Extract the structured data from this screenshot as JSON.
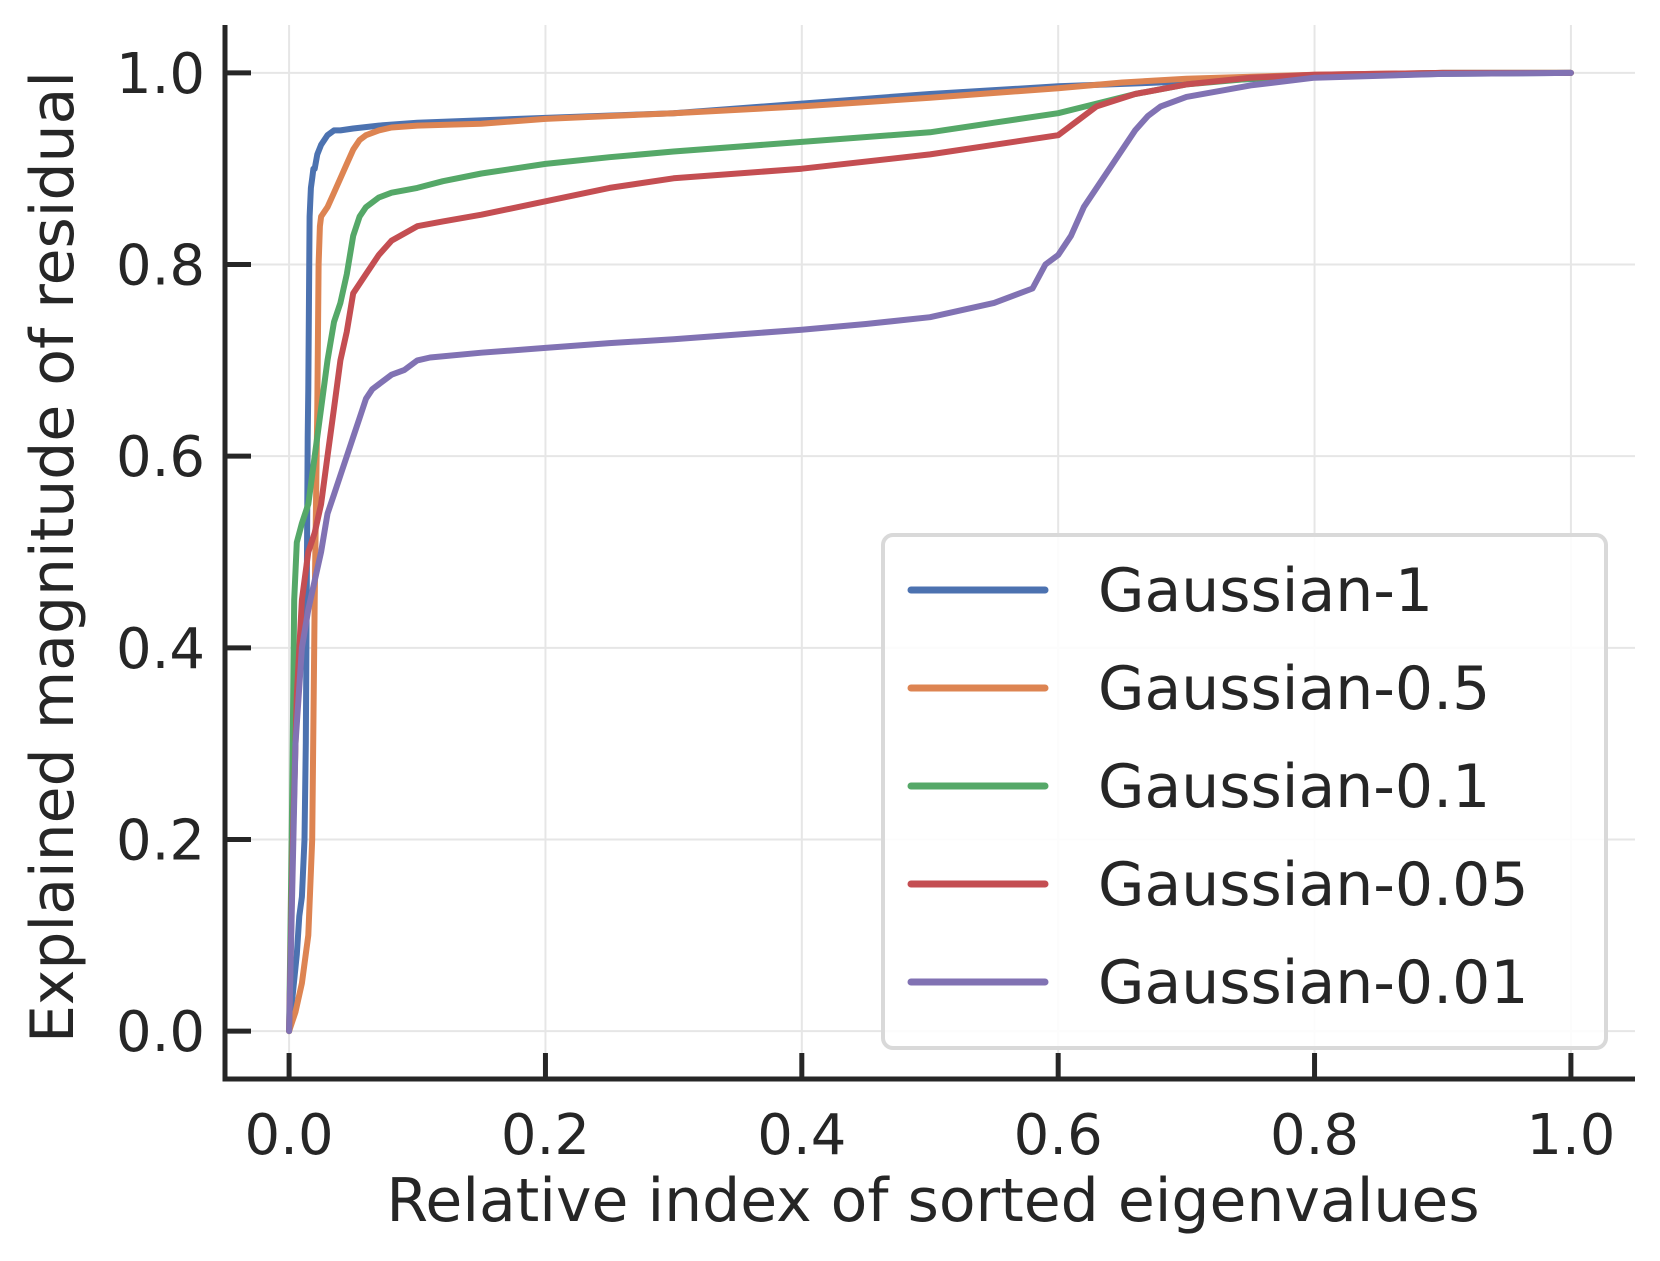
{
  "chart_data": {
    "type": "line",
    "title": "",
    "xlabel": "Relative index of sorted eigenvalues",
    "ylabel": "Explained magnitude of residual",
    "xlim": [
      -0.05,
      1.05
    ],
    "ylim": [
      -0.05,
      1.05
    ],
    "xticks": [
      0.0,
      0.2,
      0.4,
      0.6,
      0.8,
      1.0
    ],
    "yticks": [
      0.0,
      0.2,
      0.4,
      0.6,
      0.8,
      1.0
    ],
    "xtick_labels": [
      "0.0",
      "0.2",
      "0.4",
      "0.6",
      "0.8",
      "1.0"
    ],
    "ytick_labels": [
      "0.0",
      "0.2",
      "0.4",
      "0.6",
      "0.8",
      "1.0"
    ],
    "grid": true,
    "legend_position": "bottom-right",
    "series": [
      {
        "name": "Gaussian-1",
        "color": "#4c72b0",
        "x": [
          0.0,
          0.003,
          0.006,
          0.008,
          0.01,
          0.012,
          0.013,
          0.014,
          0.0145,
          0.015,
          0.016,
          0.017,
          0.018,
          0.019,
          0.02,
          0.022,
          0.025,
          0.03,
          0.035,
          0.04,
          0.05,
          0.07,
          0.1,
          0.2,
          0.3,
          0.4,
          0.5,
          0.6,
          0.7,
          0.8,
          0.9,
          1.0
        ],
        "y": [
          0.0,
          0.04,
          0.08,
          0.12,
          0.14,
          0.2,
          0.3,
          0.5,
          0.62,
          0.67,
          0.85,
          0.88,
          0.89,
          0.9,
          0.9,
          0.915,
          0.925,
          0.935,
          0.94,
          0.94,
          0.942,
          0.945,
          0.948,
          0.953,
          0.958,
          0.968,
          0.978,
          0.986,
          0.991,
          0.996,
          0.999,
          1.0
        ]
      },
      {
        "name": "Gaussian-0.5",
        "color": "#dd8452",
        "x": [
          0.0,
          0.005,
          0.01,
          0.015,
          0.018,
          0.02,
          0.022,
          0.023,
          0.024,
          0.025,
          0.03,
          0.035,
          0.04,
          0.045,
          0.05,
          0.055,
          0.06,
          0.07,
          0.08,
          0.1,
          0.15,
          0.2,
          0.3,
          0.4,
          0.5,
          0.6,
          0.65,
          0.7,
          0.8,
          0.9,
          1.0
        ],
        "y": [
          0.0,
          0.02,
          0.05,
          0.1,
          0.2,
          0.45,
          0.65,
          0.8,
          0.84,
          0.85,
          0.86,
          0.875,
          0.89,
          0.905,
          0.92,
          0.93,
          0.935,
          0.94,
          0.943,
          0.945,
          0.947,
          0.952,
          0.958,
          0.965,
          0.974,
          0.984,
          0.99,
          0.994,
          0.998,
          1.0,
          1.0
        ]
      },
      {
        "name": "Gaussian-0.1",
        "color": "#55a868",
        "x": [
          0.0,
          0.002,
          0.004,
          0.006,
          0.01,
          0.015,
          0.02,
          0.025,
          0.03,
          0.035,
          0.04,
          0.045,
          0.05,
          0.055,
          0.06,
          0.07,
          0.08,
          0.1,
          0.12,
          0.15,
          0.2,
          0.25,
          0.3,
          0.4,
          0.5,
          0.55,
          0.6,
          0.63,
          0.66,
          0.7,
          0.75,
          0.8,
          0.9,
          1.0
        ],
        "y": [
          0.0,
          0.2,
          0.45,
          0.51,
          0.53,
          0.55,
          0.6,
          0.65,
          0.7,
          0.74,
          0.76,
          0.79,
          0.83,
          0.85,
          0.86,
          0.87,
          0.875,
          0.88,
          0.887,
          0.895,
          0.905,
          0.912,
          0.918,
          0.928,
          0.938,
          0.948,
          0.958,
          0.968,
          0.978,
          0.988,
          0.994,
          0.997,
          1.0,
          1.0
        ]
      },
      {
        "name": "Gaussian-0.05",
        "color": "#c44e52",
        "x": [
          0.0,
          0.003,
          0.006,
          0.01,
          0.015,
          0.02,
          0.025,
          0.03,
          0.035,
          0.04,
          0.045,
          0.05,
          0.06,
          0.07,
          0.08,
          0.1,
          0.12,
          0.15,
          0.2,
          0.25,
          0.3,
          0.4,
          0.5,
          0.55,
          0.6,
          0.615,
          0.63,
          0.66,
          0.7,
          0.75,
          0.8,
          0.9,
          1.0
        ],
        "y": [
          0.0,
          0.2,
          0.35,
          0.45,
          0.5,
          0.52,
          0.55,
          0.6,
          0.65,
          0.7,
          0.73,
          0.77,
          0.79,
          0.81,
          0.825,
          0.84,
          0.845,
          0.852,
          0.866,
          0.88,
          0.89,
          0.9,
          0.915,
          0.925,
          0.935,
          0.95,
          0.965,
          0.978,
          0.988,
          0.995,
          0.998,
          1.0,
          1.0
        ]
      },
      {
        "name": "Gaussian-0.01",
        "color": "#8172b3",
        "x": [
          0.0,
          0.005,
          0.01,
          0.015,
          0.02,
          0.025,
          0.03,
          0.035,
          0.04,
          0.045,
          0.05,
          0.055,
          0.06,
          0.065,
          0.07,
          0.08,
          0.09,
          0.1,
          0.11,
          0.15,
          0.2,
          0.25,
          0.3,
          0.35,
          0.4,
          0.45,
          0.5,
          0.55,
          0.58,
          0.59,
          0.6,
          0.61,
          0.62,
          0.63,
          0.64,
          0.65,
          0.66,
          0.67,
          0.68,
          0.7,
          0.75,
          0.8,
          0.9,
          1.0
        ],
        "y": [
          0.0,
          0.3,
          0.4,
          0.44,
          0.47,
          0.5,
          0.54,
          0.56,
          0.58,
          0.6,
          0.62,
          0.64,
          0.66,
          0.67,
          0.675,
          0.685,
          0.69,
          0.7,
          0.703,
          0.708,
          0.713,
          0.718,
          0.722,
          0.727,
          0.732,
          0.738,
          0.745,
          0.76,
          0.775,
          0.8,
          0.81,
          0.83,
          0.86,
          0.88,
          0.9,
          0.92,
          0.94,
          0.955,
          0.965,
          0.975,
          0.987,
          0.995,
          0.999,
          1.0
        ]
      }
    ]
  }
}
